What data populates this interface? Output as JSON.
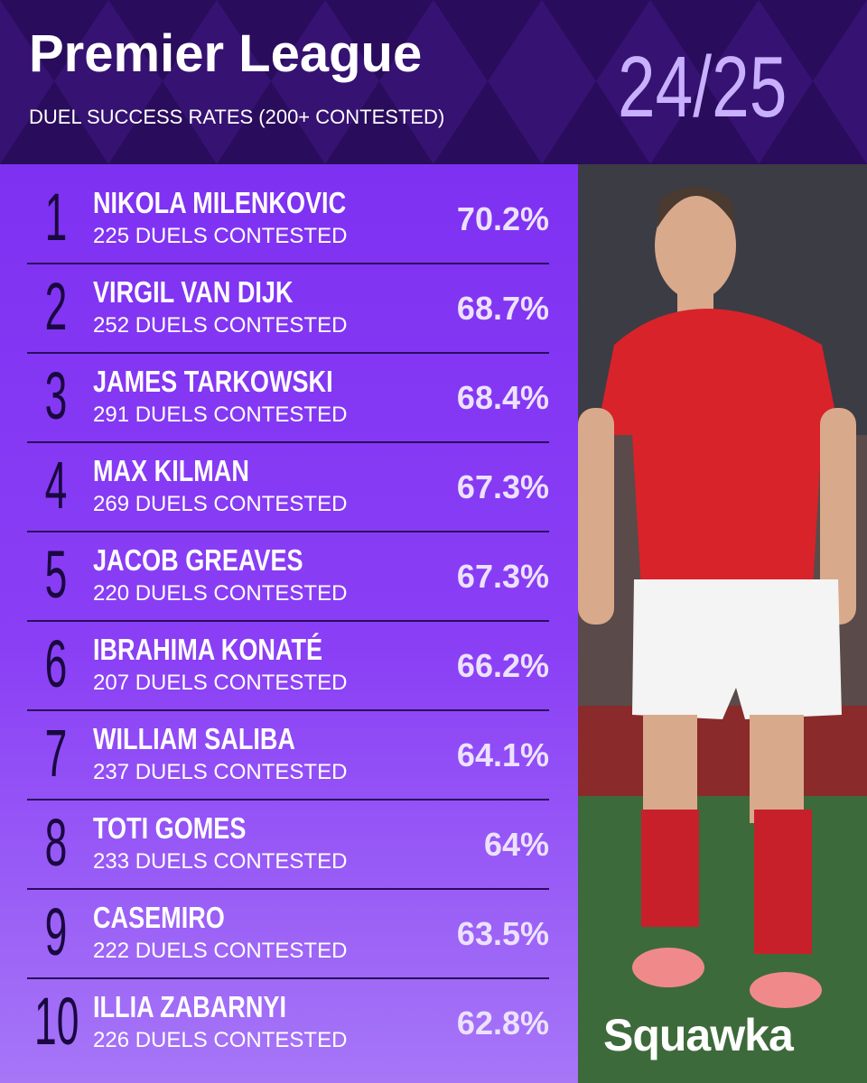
{
  "header": {
    "title": "Premier League",
    "subtitle": "DUEL SUCCESS RATES (200+ CONTESTED)",
    "season": "24/25"
  },
  "rows": [
    {
      "rank": "1",
      "name": "NIKOLA MILENKOVIC",
      "duels": "225 DUELS CONTESTED",
      "rate": "70.2%"
    },
    {
      "rank": "2",
      "name": "VIRGIL VAN DIJK",
      "duels": "252 DUELS CONTESTED",
      "rate": "68.7%"
    },
    {
      "rank": "3",
      "name": "JAMES TARKOWSKI",
      "duels": "291 DUELS CONTESTED",
      "rate": "68.4%"
    },
    {
      "rank": "4",
      "name": "MAX KILMAN",
      "duels": "269 DUELS CONTESTED",
      "rate": "67.3%"
    },
    {
      "rank": "5",
      "name": "JACOB GREAVES",
      "duels": "220 DUELS CONTESTED",
      "rate": "67.3%"
    },
    {
      "rank": "6",
      "name": "IBRAHIMA KONATÉ",
      "duels": "207 DUELS CONTESTED",
      "rate": "66.2%"
    },
    {
      "rank": "7",
      "name": "WILLIAM SALIBA",
      "duels": "237 DUELS CONTESTED",
      "rate": "64.1%"
    },
    {
      "rank": "8",
      "name": "TOTI GOMES",
      "duels": "233 DUELS CONTESTED",
      "rate": "64%"
    },
    {
      "rank": "9",
      "name": "CASEMIRO",
      "duels": "222 DUELS CONTESTED",
      "rate": "63.5%"
    },
    {
      "rank": "10",
      "name": "ILLIA ZABARNYI",
      "duels": "226 DUELS CONTESTED",
      "rate": "62.8%"
    }
  ],
  "photo": {
    "brand": "Squawka"
  }
}
